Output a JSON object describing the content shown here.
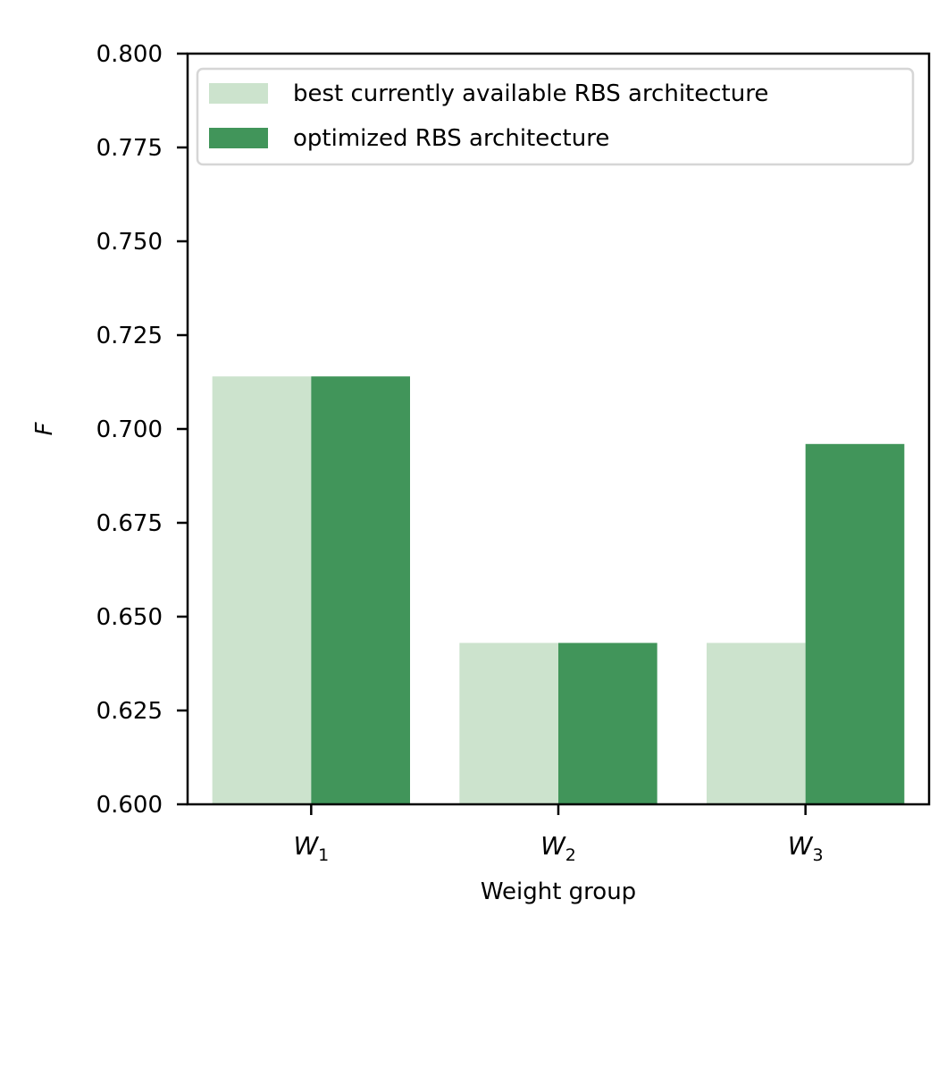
{
  "chart_data": {
    "type": "bar",
    "title": "",
    "xlabel": "Weight group",
    "ylabel": "F",
    "ylim": [
      0.6,
      0.8
    ],
    "yticks": [
      "0.600",
      "0.625",
      "0.650",
      "0.675",
      "0.700",
      "0.725",
      "0.750",
      "0.775",
      "0.800"
    ],
    "categories": [
      {
        "base": "W",
        "sub": "1"
      },
      {
        "base": "W",
        "sub": "2"
      },
      {
        "base": "W",
        "sub": "3"
      }
    ],
    "series": [
      {
        "name": "best currently available RBS architecture",
        "color": "#cce3cd",
        "values": [
          0.714,
          0.643,
          0.643
        ]
      },
      {
        "name": "optimized RBS architecture",
        "color": "#41955a",
        "values": [
          0.714,
          0.643,
          0.696
        ]
      }
    ],
    "legend": {
      "position": "top-left"
    },
    "grid": false
  }
}
